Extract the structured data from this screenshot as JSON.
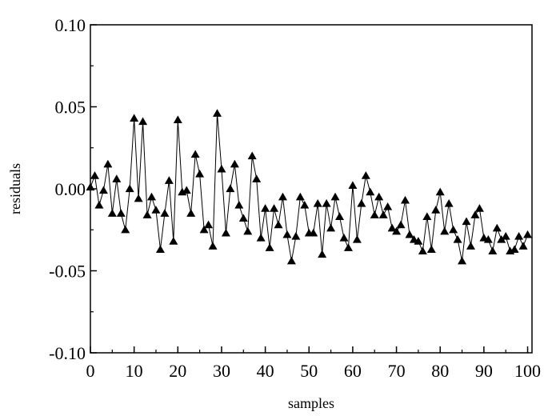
{
  "chart_data": {
    "type": "line",
    "title": "",
    "xlabel": "samples",
    "ylabel": "residuals",
    "xlim": [
      0,
      101
    ],
    "ylim": [
      -0.1,
      0.1
    ],
    "x_ticks": [
      0,
      10,
      20,
      30,
      40,
      50,
      60,
      70,
      80,
      90,
      100
    ],
    "x_tick_labels": [
      "0",
      "10",
      "20",
      "30",
      "40",
      "50",
      "60",
      "70",
      "80",
      "90",
      "100"
    ],
    "y_ticks": [
      -0.1,
      -0.05,
      0.0,
      0.05,
      0.1
    ],
    "y_tick_labels": [
      "-0.10",
      "-0.05",
      "0.00",
      "0.05",
      "0.10"
    ],
    "grid": false,
    "legend": "none",
    "marker": "triangle",
    "colors": {
      "line": "#000000",
      "marker": "#000000",
      "axes": "#000000"
    },
    "series": [
      {
        "x": [
          0,
          1,
          2,
          3,
          4,
          5,
          6,
          7,
          8,
          9,
          10,
          11,
          12,
          13,
          14,
          15,
          16,
          17,
          18,
          19,
          20,
          21,
          22,
          23,
          24,
          25,
          26,
          27,
          28,
          29,
          30,
          31,
          32,
          33,
          34,
          35,
          36,
          37,
          38,
          39,
          40,
          41,
          42,
          43,
          44,
          45,
          46,
          47,
          48,
          49,
          50,
          51,
          52,
          53,
          54,
          55,
          56,
          57,
          58,
          59,
          60,
          61,
          62,
          63,
          64,
          65,
          66,
          67,
          68,
          69,
          70,
          71,
          72,
          73,
          74,
          75,
          76,
          77,
          78,
          79,
          80,
          81,
          82,
          83,
          84,
          85,
          86,
          87,
          88,
          89,
          90,
          91,
          92,
          93,
          94,
          95,
          96,
          97,
          98,
          99,
          100
        ],
        "values": [
          0.001,
          0.008,
          -0.01,
          -0.001,
          0.015,
          -0.015,
          0.006,
          -0.015,
          -0.025,
          0.0,
          0.043,
          -0.006,
          0.041,
          -0.016,
          -0.005,
          -0.013,
          -0.037,
          -0.015,
          0.005,
          -0.032,
          0.042,
          -0.002,
          -0.001,
          -0.015,
          0.021,
          0.009,
          -0.025,
          -0.022,
          -0.035,
          0.046,
          0.012,
          -0.027,
          0.0,
          0.015,
          -0.01,
          -0.018,
          -0.026,
          0.02,
          0.006,
          -0.03,
          -0.012,
          -0.036,
          -0.012,
          -0.022,
          -0.005,
          -0.028,
          -0.044,
          -0.029,
          -0.005,
          -0.01,
          -0.027,
          -0.027,
          -0.009,
          -0.04,
          -0.009,
          -0.024,
          -0.005,
          -0.017,
          -0.03,
          -0.036,
          0.002,
          -0.031,
          -0.009,
          0.008,
          -0.002,
          -0.016,
          -0.005,
          -0.016,
          -0.011,
          -0.024,
          -0.026,
          -0.022,
          -0.007,
          -0.028,
          -0.031,
          -0.032,
          -0.038,
          -0.017,
          -0.037,
          -0.013,
          -0.002,
          -0.026,
          -0.009,
          -0.025,
          -0.031,
          -0.044,
          -0.02,
          -0.035,
          -0.016,
          -0.012,
          -0.03,
          -0.031,
          -0.038,
          -0.024,
          -0.031,
          -0.029,
          -0.038,
          -0.037,
          -0.029,
          -0.035,
          -0.028
        ]
      }
    ]
  }
}
